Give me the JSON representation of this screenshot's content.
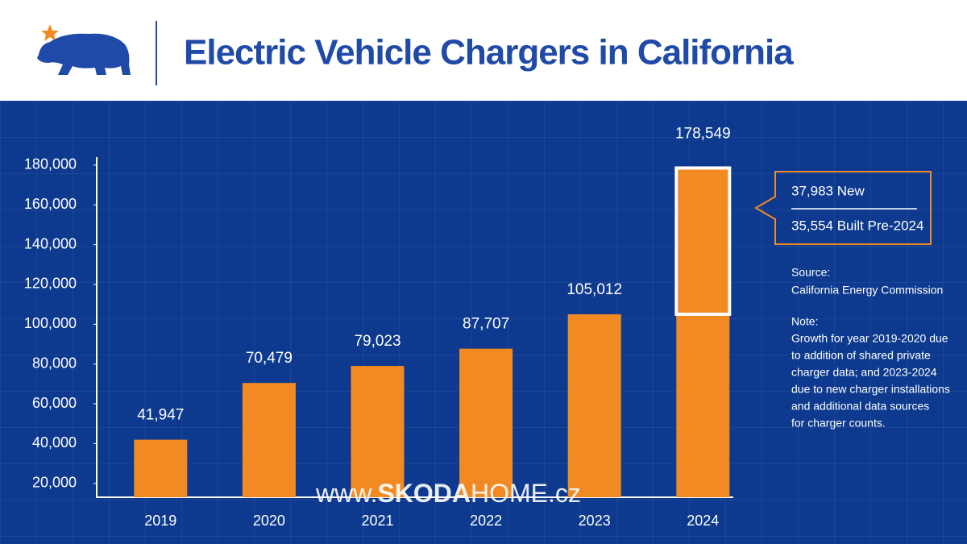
{
  "chart_data": {
    "type": "bar",
    "title": "Electric Vehicle Chargers in California",
    "categories": [
      "2019",
      "2020",
      "2021",
      "2022",
      "2023",
      "2024"
    ],
    "values": [
      41947,
      70479,
      79023,
      87707,
      105012,
      178549
    ],
    "value_labels": [
      "41,947",
      "70,479",
      "79,023",
      "87,707",
      "105,012",
      "178,549"
    ],
    "color": "#f28a24",
    "ylim": [
      13000,
      184000
    ],
    "yticks": [
      {
        "value": 20000,
        "label": "20,000"
      },
      {
        "value": 40000,
        "label": "40,000"
      },
      {
        "value": 60000,
        "label": "60,000"
      },
      {
        "value": 80000,
        "label": "80,000"
      },
      {
        "value": 100000,
        "label": "100,000"
      },
      {
        "value": 120000,
        "label": "120,000"
      },
      {
        "value": 140000,
        "label": "140,000"
      },
      {
        "value": 160000,
        "label": "160,000"
      },
      {
        "value": 180000,
        "label": "180,000"
      }
    ],
    "callout": [
      {
        "value": 37983,
        "label": "37,983 New"
      },
      {
        "value": 35554,
        "label": "35,554 Built Pre-2024"
      }
    ],
    "source": [
      "Source:",
      "California Energy Commission"
    ],
    "note": [
      "Note:",
      "Growth for year 2019-2020 due",
      "to addition of shared private",
      "charger data; and 2023-2024",
      "due to new charger installations",
      "and additional data sources",
      "for charger counts."
    ],
    "watermark": [
      "www.",
      "SKODA",
      "HOME.cz"
    ]
  }
}
